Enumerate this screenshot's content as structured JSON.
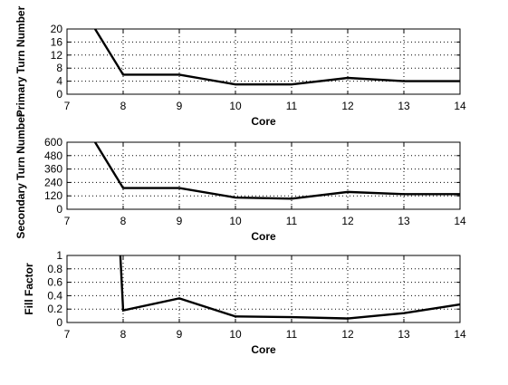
{
  "chart_data": [
    {
      "type": "line",
      "title": "",
      "xlabel": "Core",
      "ylabel": "Primary Turn Number",
      "xlim": [
        7,
        14
      ],
      "ylim": [
        0,
        20
      ],
      "xticks": [
        7,
        8,
        9,
        10,
        11,
        12,
        13,
        14
      ],
      "yticks": [
        0,
        4,
        8,
        12,
        16,
        20
      ],
      "grid": true,
      "series": [
        {
          "x": [
            7.5,
            8,
            9,
            10,
            11,
            12,
            13,
            14
          ],
          "values": [
            20,
            6,
            6,
            3,
            3,
            5,
            4,
            4
          ]
        }
      ]
    },
    {
      "type": "line",
      "title": "",
      "xlabel": "Core",
      "ylabel": "Secondary Turn Number",
      "xlim": [
        7,
        14
      ],
      "ylim": [
        0,
        600
      ],
      "xticks": [
        7,
        8,
        9,
        10,
        11,
        12,
        13,
        14
      ],
      "yticks": [
        0,
        120,
        240,
        360,
        480,
        600
      ],
      "grid": true,
      "series": [
        {
          "x": [
            7.5,
            8,
            9,
            10,
            11,
            12,
            13,
            14
          ],
          "values": [
            600,
            190,
            190,
            105,
            95,
            155,
            135,
            135
          ]
        }
      ]
    },
    {
      "type": "line",
      "title": "",
      "xlabel": "Core",
      "ylabel": "Fill Factor",
      "xlim": [
        7,
        14
      ],
      "ylim": [
        0,
        1
      ],
      "xticks": [
        7,
        8,
        9,
        10,
        11,
        12,
        13,
        14
      ],
      "yticks": [
        0,
        0.2,
        0.4,
        0.6,
        0.8,
        1
      ],
      "ytick_labels": [
        "0",
        "0.2",
        "0.4",
        "0.6",
        "0.8",
        "1"
      ],
      "grid": true,
      "series": [
        {
          "x": [
            7.95,
            8,
            9,
            10,
            11,
            12,
            13,
            14
          ],
          "values": [
            1,
            0.18,
            0.36,
            0.09,
            0.08,
            0.06,
            0.14,
            0.27
          ]
        }
      ]
    }
  ]
}
